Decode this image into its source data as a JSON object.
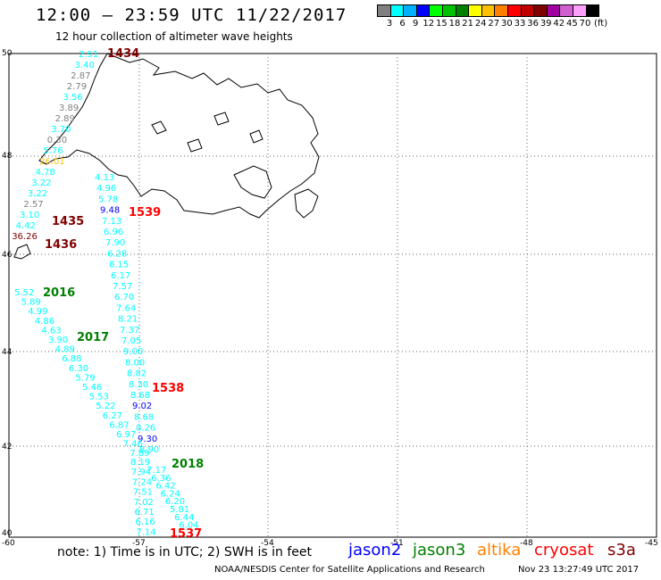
{
  "header": {
    "title": "12:00 – 23:59 UTC 11/22/2017",
    "subtitle": "12 hour collection of altimeter wave heights"
  },
  "colorbar": {
    "colors": [
      "#808080",
      "#00ffff",
      "#00b0ff",
      "#0000ff",
      "#00ff00",
      "#00c000",
      "#008000",
      "#ffff00",
      "#ffc000",
      "#ff8000",
      "#ff0000",
      "#c00000",
      "#800000",
      "#a000a0",
      "#d060d0",
      "#ffa0ff",
      "#000000"
    ],
    "labels": [
      "3",
      "6",
      "9",
      "12",
      "15",
      "18",
      "21",
      "24",
      "27",
      "30",
      "33",
      "36",
      "39",
      "42",
      "45",
      "70",
      "(ft)"
    ]
  },
  "axes": {
    "lat_labels": [
      "50",
      "48",
      "46",
      "44",
      "42",
      "40"
    ],
    "lon_labels": [
      "-60",
      "-57",
      "-54",
      "-51",
      "-48",
      "-45"
    ]
  },
  "passes": [
    {
      "label": "1434",
      "color": "#800000"
    },
    {
      "label": "1435",
      "color": "#800000"
    },
    {
      "label": "1436",
      "color": "#800000"
    },
    {
      "label": "1539",
      "color": "#ff0000"
    },
    {
      "label": "1538",
      "color": "#ff0000"
    },
    {
      "label": "1537",
      "color": "#ff0000"
    },
    {
      "label": "2016",
      "color": "#008000"
    },
    {
      "label": "2017",
      "color": "#008000"
    },
    {
      "label": "2018",
      "color": "#008000"
    }
  ],
  "track_a": {
    "values": [
      "2.91",
      "3.40",
      "2.87",
      "2.79",
      "3.56",
      "3.89",
      "2.89",
      "3.70",
      "0.30",
      "5.76",
      "26.01",
      "4.78",
      "3.22",
      "3.22",
      "2.57",
      "3.10",
      "4.42",
      "36.26"
    ],
    "colors": [
      "#00ffff",
      "#00ffff",
      "#808080",
      "#808080",
      "#00ffff",
      "#808080",
      "#808080",
      "#00ffff",
      "#808080",
      "#00ffff",
      "#ffc000",
      "#00ffff",
      "#00ffff",
      "#00ffff",
      "#808080",
      "#00ffff",
      "#00ffff",
      "#800000"
    ]
  },
  "track_b": {
    "values": [
      "4.13",
      "4.96",
      "5.78",
      "9.48",
      "7.13",
      "6.96",
      "7.90",
      "6.28",
      "8.15",
      "6.17",
      "7.57",
      "6.70",
      "7.64",
      "8.21",
      "7.37",
      "7.05",
      "9.00",
      "8.00",
      "8.82",
      "8.30",
      "8.68",
      "9.02",
      "8.68",
      "8.26",
      "9.30",
      "8.90"
    ],
    "colors": [
      "#00ffff",
      "#00ffff",
      "#00ffff",
      "#0000ff",
      "#00ffff",
      "#00ffff",
      "#00ffff",
      "#00ffff",
      "#00ffff",
      "#00ffff",
      "#00ffff",
      "#00ffff",
      "#00ffff",
      "#00ffff",
      "#00ffff",
      "#00ffff",
      "#00ffff",
      "#00ffff",
      "#00ffff",
      "#00ffff",
      "#00ffff",
      "#0000ff",
      "#00ffff",
      "#00ffff",
      "#0000ff",
      "#00ffff"
    ]
  },
  "track_c": {
    "values": [
      "5.52",
      "5.89",
      "4.99",
      "4.86",
      "4.63",
      "3.90",
      "4.89",
      "6.88",
      "6.30",
      "5.79",
      "5.46",
      "5.53",
      "5.22",
      "6.27",
      "6.87",
      "6.97",
      "7.46",
      "7.89"
    ],
    "colors": [
      "#00ffff",
      "#00ffff",
      "#00ffff",
      "#00ffff",
      "#00ffff",
      "#00ffff",
      "#00ffff",
      "#00ffff",
      "#00ffff",
      "#00ffff",
      "#00ffff",
      "#00ffff",
      "#00ffff",
      "#00ffff",
      "#00ffff",
      "#00ffff",
      "#00ffff",
      "#00ffff"
    ]
  },
  "track_d": {
    "values": [
      "8.19",
      "7.94",
      "7.24",
      "7.51",
      "7.02",
      "6.71",
      "6.16",
      "7.14"
    ],
    "colors": [
      "#00ffff",
      "#00ffff",
      "#00ffff",
      "#00ffff",
      "#00ffff",
      "#00ffff",
      "#00ffff",
      "#00ffff"
    ]
  },
  "track_e": {
    "values": [
      "7.17",
      "6.36",
      "6.42",
      "6.24",
      "6.20",
      "5.81",
      "6.44",
      "6.04"
    ],
    "colors": [
      "#00ffff",
      "#00ffff",
      "#00ffff",
      "#00ffff",
      "#00ffff",
      "#00ffff",
      "#00ffff",
      "#00ffff"
    ]
  },
  "footer": {
    "note": "note: 1) Time is in UTC; 2) SWH is in feet",
    "legend": [
      {
        "name": "jason2",
        "color": "#0000ff"
      },
      {
        "name": "jason3",
        "color": "#008000"
      },
      {
        "name": "altika",
        "color": "#ff8000"
      },
      {
        "name": "cryosat",
        "color": "#ff0000"
      },
      {
        "name": "s3a",
        "color": "#800000"
      }
    ],
    "credit": "NOAA/NESDIS Center for Satellite Applications and Research",
    "timestamp": "Nov 23 13:27:49 UTC 2017"
  }
}
